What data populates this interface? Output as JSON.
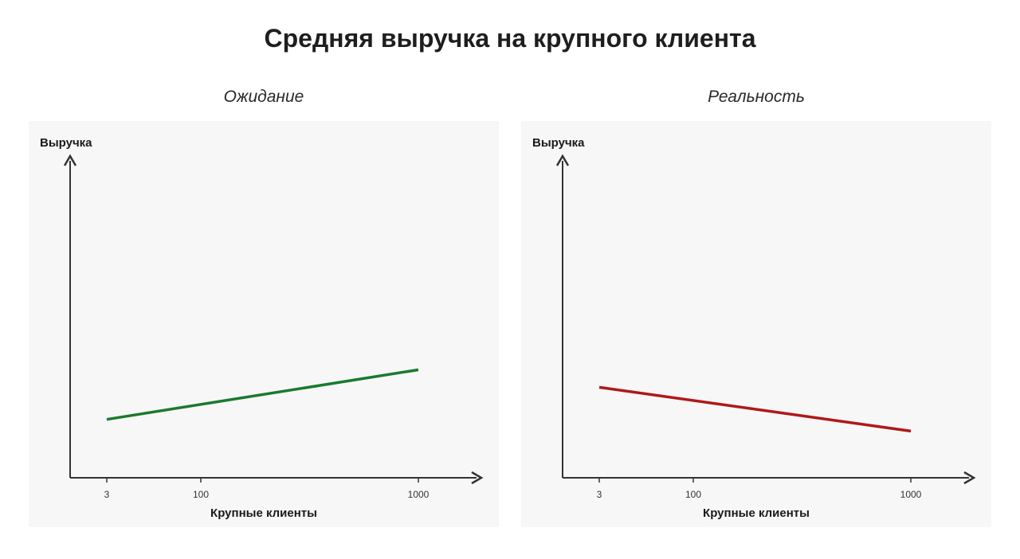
{
  "title": "Средняя выручка на крупного клиента",
  "colors": {
    "panel_background": "#f7f7f7",
    "axis": "#333333",
    "expectation_line": "#1a7a2e",
    "reality_line": "#b01818"
  },
  "chart_data": [
    {
      "type": "line",
      "title": "Ожидание",
      "xlabel": "Крупные клиенты",
      "ylabel": "Выручка",
      "x_ticks": [
        {
          "label": "3",
          "value": 3
        },
        {
          "label": "100",
          "value": 100
        },
        {
          "label": "1000",
          "value": 1000
        }
      ],
      "xlim": [
        0,
        1200
      ],
      "ylim": [
        0,
        10
      ],
      "grid": false,
      "y_tick_labels": false,
      "series": [
        {
          "color": "#1a7a2e",
          "points": [
            {
              "x": 3,
              "y": 2.0
            },
            {
              "x": 1000,
              "y": 3.7
            }
          ]
        }
      ]
    },
    {
      "type": "line",
      "title": "Реальность",
      "xlabel": "Крупные клиенты",
      "ylabel": "Выручка",
      "x_ticks": [
        {
          "label": "3",
          "value": 3
        },
        {
          "label": "100",
          "value": 100
        },
        {
          "label": "1000",
          "value": 1000
        }
      ],
      "xlim": [
        0,
        1200
      ],
      "ylim": [
        0,
        10
      ],
      "grid": false,
      "y_tick_labels": false,
      "series": [
        {
          "color": "#b01818",
          "points": [
            {
              "x": 3,
              "y": 3.1
            },
            {
              "x": 1000,
              "y": 1.6
            }
          ]
        }
      ]
    }
  ]
}
